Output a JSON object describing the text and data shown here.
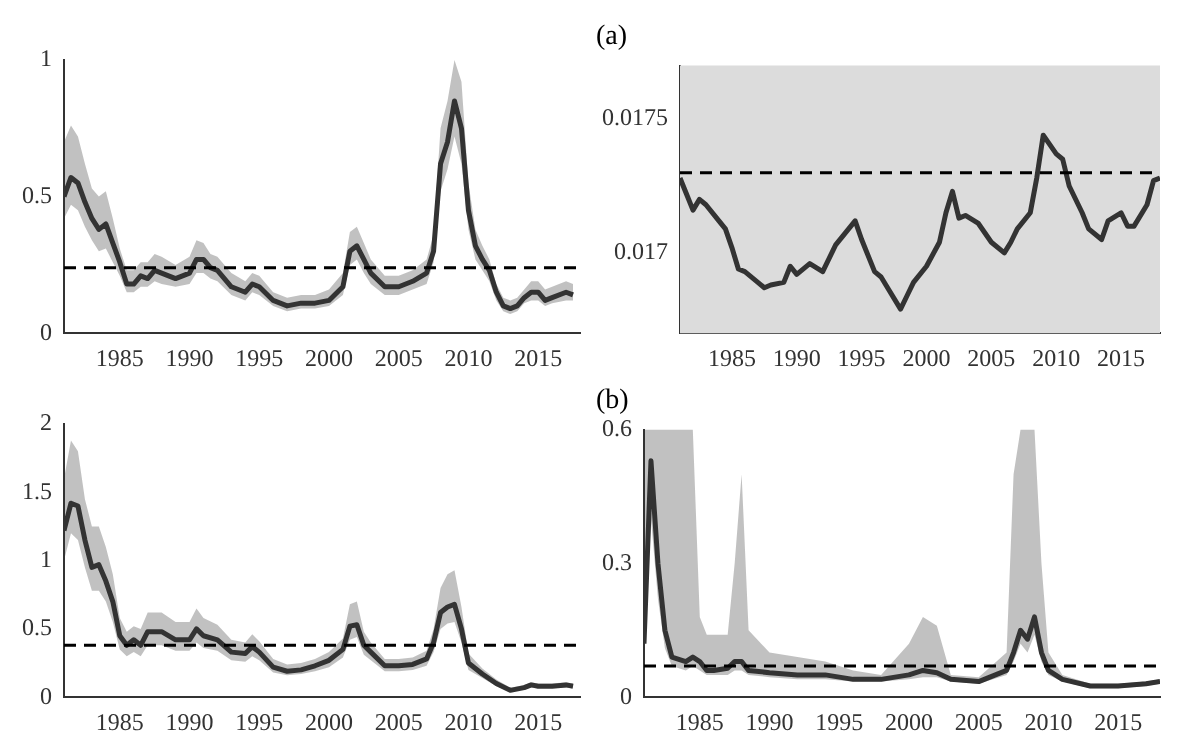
{
  "chart_data": [
    {
      "type": "line",
      "x": [
        1981,
        1981.5,
        1982,
        1982.5,
        1983,
        1983.5,
        1984,
        1984.5,
        1985,
        1985.5,
        1986,
        1986.5,
        1987,
        1987.5,
        1988,
        1989,
        1990,
        1990.5,
        1991,
        1991.5,
        1992,
        1993,
        1994,
        1994.5,
        1995,
        1996,
        1997,
        1998,
        1999,
        2000,
        2001,
        2001.5,
        2002,
        2002.5,
        2003,
        2004,
        2005,
        2006,
        2007,
        2007.5,
        2008,
        2008.5,
        2009,
        2009.5,
        2010,
        2010.5,
        2011,
        2011.5,
        2012,
        2012.5,
        2013,
        2013.5,
        2014,
        2014.5,
        2015,
        2015.5,
        2016,
        2017,
        2017.5
      ],
      "series": [
        {
          "color": "#333333",
          "values": [
            0.5,
            0.57,
            0.55,
            0.48,
            0.42,
            0.38,
            0.4,
            0.33,
            0.26,
            0.18,
            0.18,
            0.21,
            0.2,
            0.23,
            0.22,
            0.2,
            0.22,
            0.27,
            0.27,
            0.24,
            0.23,
            0.17,
            0.15,
            0.18,
            0.17,
            0.12,
            0.1,
            0.11,
            0.11,
            0.12,
            0.17,
            0.3,
            0.32,
            0.27,
            0.22,
            0.17,
            0.17,
            0.19,
            0.22,
            0.3,
            0.62,
            0.7,
            0.85,
            0.75,
            0.45,
            0.32,
            0.27,
            0.23,
            0.15,
            0.1,
            0.09,
            0.1,
            0.13,
            0.15,
            0.15,
            0.12,
            0.13,
            0.15,
            0.14
          ],
          "upper": [
            0.7,
            0.76,
            0.72,
            0.62,
            0.53,
            0.5,
            0.52,
            0.42,
            0.31,
            0.23,
            0.23,
            0.26,
            0.26,
            0.29,
            0.28,
            0.25,
            0.28,
            0.34,
            0.33,
            0.29,
            0.28,
            0.22,
            0.19,
            0.22,
            0.21,
            0.15,
            0.13,
            0.14,
            0.14,
            0.16,
            0.22,
            0.37,
            0.39,
            0.33,
            0.27,
            0.21,
            0.21,
            0.23,
            0.27,
            0.36,
            0.75,
            0.85,
            1.0,
            0.92,
            0.55,
            0.38,
            0.32,
            0.27,
            0.18,
            0.13,
            0.12,
            0.13,
            0.16,
            0.19,
            0.19,
            0.16,
            0.17,
            0.19,
            0.18
          ],
          "lower": [
            0.42,
            0.47,
            0.45,
            0.39,
            0.34,
            0.3,
            0.31,
            0.26,
            0.21,
            0.15,
            0.15,
            0.17,
            0.17,
            0.19,
            0.18,
            0.17,
            0.18,
            0.22,
            0.22,
            0.2,
            0.19,
            0.14,
            0.12,
            0.15,
            0.14,
            0.1,
            0.08,
            0.09,
            0.09,
            0.1,
            0.14,
            0.25,
            0.27,
            0.22,
            0.18,
            0.14,
            0.14,
            0.16,
            0.18,
            0.26,
            0.52,
            0.6,
            0.72,
            0.62,
            0.38,
            0.27,
            0.23,
            0.19,
            0.12,
            0.08,
            0.07,
            0.08,
            0.11,
            0.12,
            0.12,
            0.1,
            0.11,
            0.12,
            0.12
          ]
        }
      ],
      "xlim": [
        1981,
        2018
      ],
      "xticks": [
        1985,
        1990,
        1995,
        2000,
        2005,
        2010,
        2015
      ],
      "ylim": [
        0,
        1
      ],
      "yticks": [
        0,
        0.5,
        1
      ],
      "ref_lines": [
        {
          "axis": "y",
          "value": 0.24,
          "color": "#000000",
          "line_style": "dashed"
        }
      ],
      "legend": false,
      "grid": false
    },
    {
      "type": "line",
      "title": "(a)",
      "x": [
        1981,
        1981.5,
        1982,
        1982.5,
        1983,
        1984,
        1984.5,
        1985,
        1985.5,
        1986,
        1987,
        1987.5,
        1988,
        1989,
        1989.5,
        1990,
        1991,
        1992,
        1993,
        1994,
        1994.5,
        1995,
        1996,
        1996.5,
        1997,
        1998,
        1998.5,
        1999,
        2000,
        2001,
        2001.5,
        2002,
        2002.5,
        2003,
        2004,
        2005,
        2006,
        2006.5,
        2007,
        2008,
        2008.5,
        2009,
        2010,
        2010.5,
        2011,
        2012,
        2012.5,
        2013.5,
        2014,
        2015,
        2015.5,
        2016,
        2017,
        2017.5,
        2018
      ],
      "series": [
        {
          "color": "#333333",
          "values": [
            0.01728,
            0.01722,
            0.01716,
            0.0172,
            0.01718,
            0.01712,
            0.01709,
            0.01702,
            0.01694,
            0.01693,
            0.01689,
            0.01687,
            0.01688,
            0.01689,
            0.01695,
            0.01692,
            0.01696,
            0.01693,
            0.01703,
            0.01709,
            0.01712,
            0.01705,
            0.01693,
            0.01691,
            0.01687,
            0.01679,
            0.01684,
            0.01689,
            0.01695,
            0.01704,
            0.01715,
            0.01723,
            0.01713,
            0.01714,
            0.01711,
            0.01704,
            0.017,
            0.01704,
            0.01709,
            0.01715,
            0.01728,
            0.01744,
            0.01737,
            0.01735,
            0.01725,
            0.01715,
            0.01709,
            0.01705,
            0.01712,
            0.01715,
            0.0171,
            0.0171,
            0.01718,
            0.01727,
            0.01728
          ]
        }
      ],
      "xlim": [
        1981,
        2018
      ],
      "xticks": [
        1985,
        1990,
        1995,
        2000,
        2005,
        2010,
        2015
      ],
      "ylim": [
        0.0167,
        0.0177
      ],
      "yticks": [
        0.017,
        0.0175
      ],
      "bands": [
        {
          "axis": "y",
          "from": 0.0167,
          "to": 0.0177,
          "color": "#dcdcdc"
        }
      ],
      "ref_lines": [
        {
          "axis": "y",
          "value": 0.0173,
          "color": "#000000",
          "line_style": "dashed"
        }
      ],
      "legend": false,
      "grid": false
    },
    {
      "type": "line",
      "x": [
        1981,
        1981.5,
        1982,
        1982.5,
        1983,
        1983.5,
        1984,
        1984.5,
        1985,
        1985.5,
        1986,
        1986.5,
        1987,
        1988,
        1989,
        1990,
        1990.5,
        1991,
        1992,
        1993,
        1994,
        1994.5,
        1995,
        1996,
        1997,
        1998,
        1999,
        2000,
        2001,
        2001.5,
        2002,
        2002.5,
        2003,
        2004,
        2005,
        2006,
        2007,
        2007.5,
        2008,
        2008.5,
        2009,
        2009.5,
        2010,
        2011,
        2012,
        2013,
        2014,
        2014.5,
        2015,
        2016,
        2017,
        2017.5
      ],
      "series": [
        {
          "color": "#333333",
          "values": [
            1.22,
            1.42,
            1.4,
            1.15,
            0.95,
            0.97,
            0.85,
            0.7,
            0.45,
            0.38,
            0.42,
            0.38,
            0.48,
            0.48,
            0.42,
            0.42,
            0.5,
            0.45,
            0.42,
            0.33,
            0.32,
            0.37,
            0.33,
            0.22,
            0.19,
            0.2,
            0.23,
            0.27,
            0.35,
            0.52,
            0.53,
            0.38,
            0.33,
            0.23,
            0.23,
            0.24,
            0.28,
            0.4,
            0.62,
            0.66,
            0.68,
            0.5,
            0.25,
            0.17,
            0.1,
            0.05,
            0.07,
            0.09,
            0.08,
            0.08,
            0.09,
            0.08
          ],
          "upper": [
            1.6,
            1.88,
            1.8,
            1.45,
            1.25,
            1.25,
            1.1,
            0.9,
            0.58,
            0.48,
            0.52,
            0.5,
            0.62,
            0.62,
            0.55,
            0.55,
            0.65,
            0.58,
            0.53,
            0.42,
            0.4,
            0.46,
            0.41,
            0.28,
            0.24,
            0.25,
            0.28,
            0.33,
            0.43,
            0.68,
            0.7,
            0.48,
            0.4,
            0.28,
            0.28,
            0.29,
            0.34,
            0.5,
            0.8,
            0.9,
            0.93,
            0.66,
            0.32,
            0.21,
            0.13,
            0.07,
            0.09,
            0.11,
            0.1,
            0.1,
            0.11,
            0.1
          ],
          "lower": [
            1.0,
            1.2,
            1.15,
            0.95,
            0.78,
            0.78,
            0.7,
            0.55,
            0.35,
            0.3,
            0.33,
            0.3,
            0.38,
            0.38,
            0.34,
            0.34,
            0.4,
            0.36,
            0.34,
            0.27,
            0.26,
            0.3,
            0.27,
            0.18,
            0.16,
            0.17,
            0.19,
            0.22,
            0.29,
            0.42,
            0.44,
            0.31,
            0.27,
            0.19,
            0.19,
            0.2,
            0.23,
            0.33,
            0.5,
            0.54,
            0.55,
            0.4,
            0.2,
            0.14,
            0.08,
            0.04,
            0.06,
            0.07,
            0.07,
            0.07,
            0.07,
            0.07
          ]
        }
      ],
      "xlim": [
        1981,
        2018
      ],
      "xticks": [
        1985,
        1990,
        1995,
        2000,
        2005,
        2010,
        2015
      ],
      "ylim": [
        0,
        2
      ],
      "yticks": [
        0,
        0.5,
        1,
        1.5,
        2
      ],
      "ref_lines": [
        {
          "axis": "y",
          "value": 0.38,
          "color": "#000000",
          "line_style": "dashed"
        }
      ],
      "legend": false,
      "grid": false
    },
    {
      "type": "line",
      "title": "(b)",
      "x": [
        1981,
        1981.5,
        1982,
        1982.5,
        1983,
        1984,
        1984.5,
        1985,
        1985.5,
        1986,
        1987,
        1987.5,
        1988,
        1988.5,
        1990,
        1992,
        1994,
        1996,
        1998,
        2000,
        2001,
        2002,
        2003,
        2005,
        2007,
        2007.5,
        2008,
        2008.5,
        2009,
        2009.5,
        2010,
        2011,
        2013,
        2015,
        2017,
        2018
      ],
      "series": [
        {
          "color": "#333333",
          "values": [
            0.12,
            0.53,
            0.3,
            0.15,
            0.09,
            0.08,
            0.09,
            0.08,
            0.06,
            0.06,
            0.065,
            0.08,
            0.08,
            0.06,
            0.055,
            0.05,
            0.05,
            0.04,
            0.04,
            0.05,
            0.06,
            0.055,
            0.04,
            0.035,
            0.06,
            0.1,
            0.15,
            0.13,
            0.18,
            0.1,
            0.06,
            0.04,
            0.025,
            0.025,
            0.03,
            0.035
          ],
          "upper": [
            0.6,
            0.6,
            0.6,
            0.6,
            0.6,
            0.6,
            0.6,
            0.18,
            0.14,
            0.14,
            0.14,
            0.3,
            0.5,
            0.15,
            0.1,
            0.09,
            0.08,
            0.06,
            0.05,
            0.12,
            0.18,
            0.16,
            0.05,
            0.045,
            0.1,
            0.5,
            0.6,
            0.6,
            0.6,
            0.3,
            0.1,
            0.05,
            0.03,
            0.03,
            0.035,
            0.04
          ],
          "lower": [
            0.1,
            0.4,
            0.22,
            0.11,
            0.07,
            0.06,
            0.07,
            0.06,
            0.05,
            0.05,
            0.05,
            0.06,
            0.06,
            0.05,
            0.045,
            0.04,
            0.04,
            0.035,
            0.035,
            0.04,
            0.045,
            0.045,
            0.035,
            0.03,
            0.05,
            0.08,
            0.12,
            0.1,
            0.14,
            0.08,
            0.05,
            0.035,
            0.02,
            0.02,
            0.025,
            0.03
          ]
        }
      ],
      "xlim": [
        1981,
        2018
      ],
      "xticks": [
        1985,
        1990,
        1995,
        2000,
        2005,
        2010,
        2015
      ],
      "ylim": [
        0,
        0.6
      ],
      "yticks": [
        0,
        0.3,
        0.6
      ],
      "ref_lines": [
        {
          "axis": "y",
          "value": 0.07,
          "color": "#000000",
          "line_style": "dashed"
        }
      ],
      "legend": false,
      "grid": false
    }
  ]
}
